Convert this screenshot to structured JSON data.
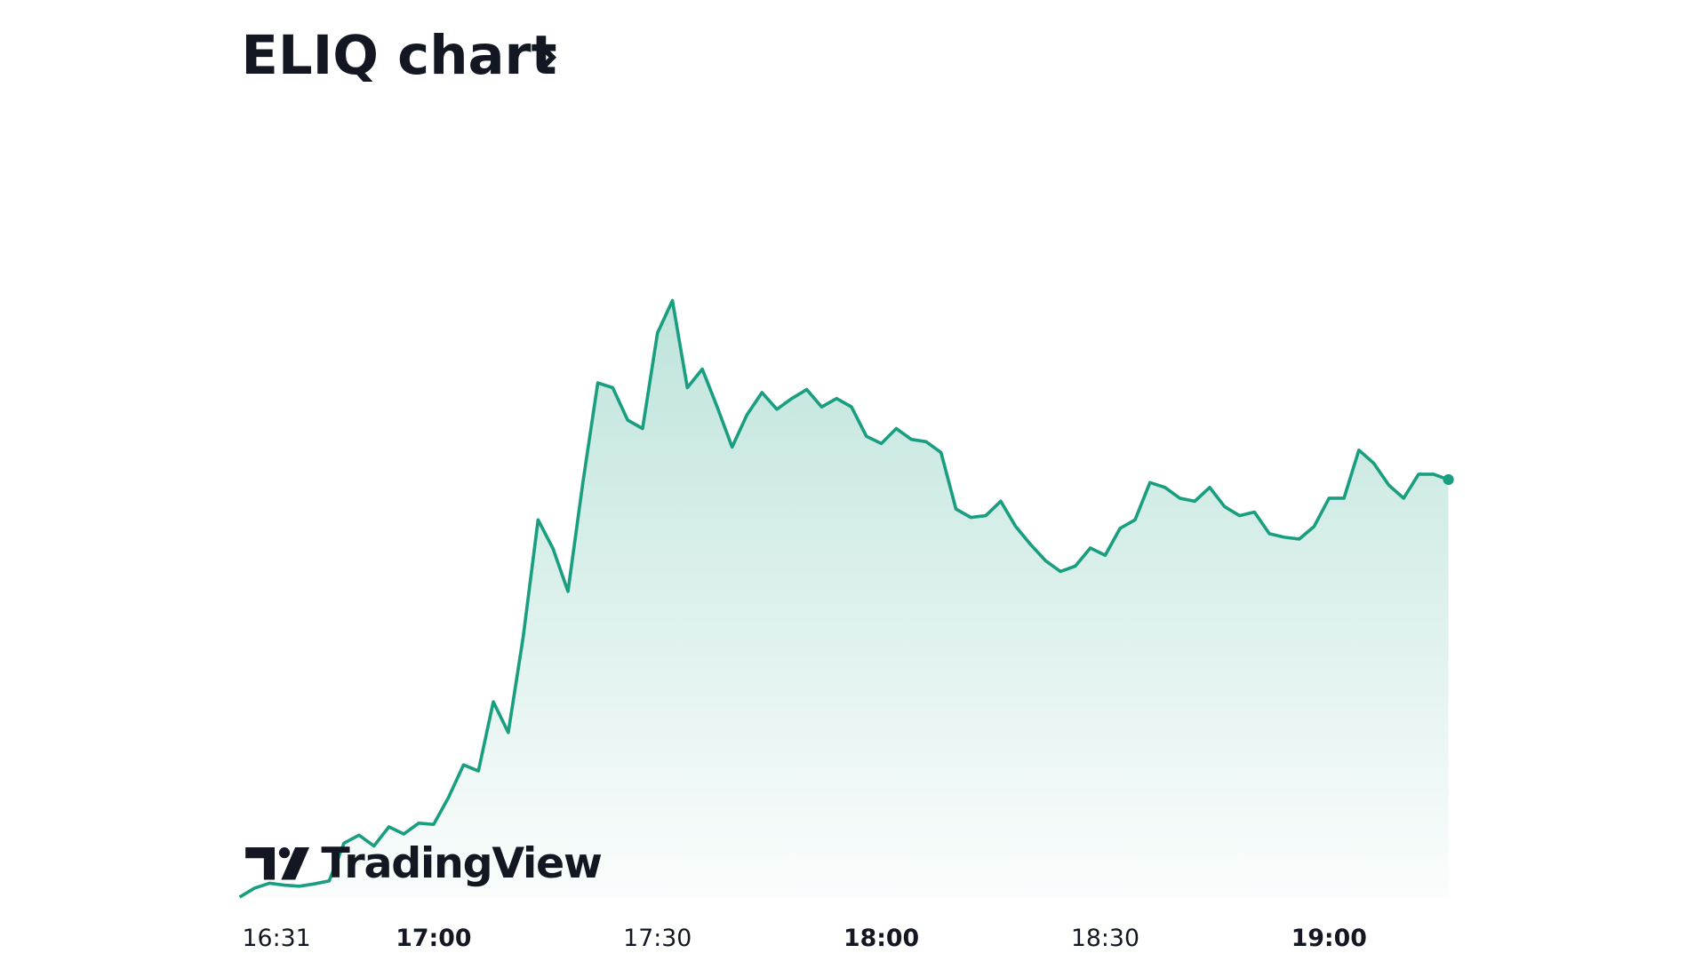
{
  "chart_data": {
    "type": "line",
    "title": "ELIQ chart",
    "brand": "TradingView",
    "x": [
      "16:34",
      "16:36",
      "16:38",
      "16:40",
      "16:42",
      "16:44",
      "16:46",
      "16:48",
      "16:50",
      "16:52",
      "16:54",
      "16:56",
      "16:58",
      "17:00",
      "17:02",
      "17:04",
      "17:06",
      "17:08",
      "17:10",
      "17:12",
      "17:14",
      "17:16",
      "17:18",
      "17:20",
      "17:22",
      "17:24",
      "17:26",
      "17:28",
      "17:30",
      "17:32",
      "17:34",
      "17:36",
      "17:38",
      "17:40",
      "17:42",
      "17:44",
      "17:46",
      "17:48",
      "17:50",
      "17:52",
      "17:54",
      "17:56",
      "17:58",
      "18:00",
      "18:02",
      "18:04",
      "18:06",
      "18:08",
      "18:10",
      "18:12",
      "18:14",
      "18:16",
      "18:18",
      "18:20",
      "18:22",
      "18:24",
      "18:26",
      "18:28",
      "18:30",
      "18:32",
      "18:34",
      "18:36",
      "18:38",
      "18:40",
      "18:42",
      "18:44",
      "18:46",
      "18:48",
      "18:50",
      "18:52",
      "18:54",
      "18:56",
      "18:58",
      "19:00",
      "19:02",
      "19:04",
      "19:06",
      "19:08",
      "19:10",
      "19:12",
      "19:14",
      "19:16"
    ],
    "series": [
      {
        "color": "#1a9e80",
        "values": [
          0,
          1.5,
          2.3,
          2,
          1.8,
          2.2,
          2.7,
          9,
          10.3,
          8.5,
          11.7,
          10.5,
          12.3,
          12.1,
          16.6,
          22,
          21,
          32.5,
          27.4,
          43.3,
          62.8,
          58,
          50.9,
          69,
          85.6,
          84.8,
          79.4,
          78,
          93.9,
          99.3,
          84.8,
          87.9,
          81.6,
          74.9,
          80.3,
          84,
          81.2,
          83,
          84.5,
          81.6,
          83,
          81.6,
          76.7,
          75.5,
          78,
          76.2,
          75.8,
          74,
          64.6,
          63.2,
          63.5,
          65.9,
          61.7,
          58.7,
          56,
          54.2,
          55.1,
          58.1,
          56.9,
          61.4,
          62.8,
          69,
          68.2,
          66.4,
          65.9,
          68.2,
          65,
          63.5,
          64.1,
          60.5,
          59.9,
          59.6,
          61.7,
          66.4,
          66.4,
          74.4,
          72.2,
          68.6,
          66.4,
          70.4,
          70.4,
          69.5
        ]
      }
    ],
    "xticks": [
      "16:31",
      "17:00",
      "17:30",
      "18:00",
      "18:30",
      "19:00"
    ]
  }
}
